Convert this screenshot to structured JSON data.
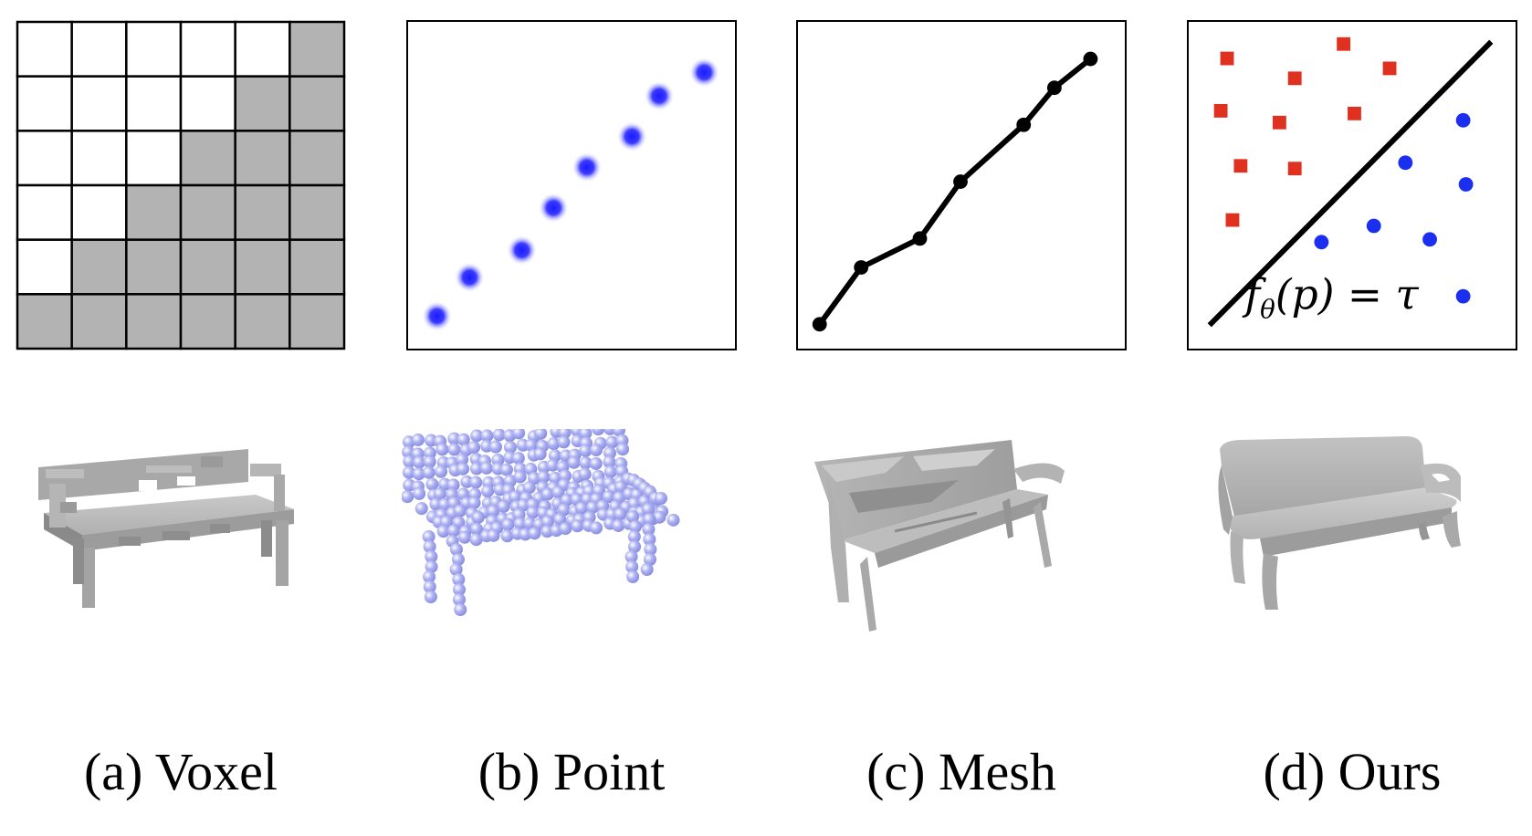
{
  "captions": {
    "voxel": "(a) Voxel",
    "point": "(b) Point",
    "mesh": "(c) Mesh",
    "ours": "(d) Ours"
  },
  "formula": {
    "f": "f",
    "theta": "θ",
    "rest": "(p) = τ"
  },
  "colors": {
    "voxel_fill": "#b3b3b3",
    "point_blue": "#2a2aff",
    "square_red": "#e03020",
    "circle_blue": "#1a2ff0",
    "line": "#000000",
    "bench_gray": "#b8b8b8",
    "bench_point": "#aeb2f2"
  },
  "voxel_grid": {
    "rows": 6,
    "cols": 6,
    "filled_from_col": [
      5,
      4,
      3,
      2,
      1,
      0
    ]
  }
}
